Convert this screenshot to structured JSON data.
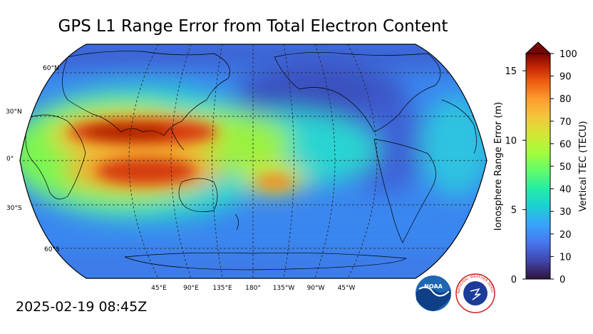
{
  "title": "GPS L1 Range Error from Total Electron Content",
  "timestamp": "2025-02-19 08:45Z",
  "map": {
    "projection": "Robinson",
    "central_longitude": 180,
    "lat_labels": [
      "60°N",
      "30°N",
      "0°",
      "30°S",
      "60°S"
    ],
    "lon_labels": [
      "45°E",
      "90°E",
      "135°E",
      "180°",
      "135°W",
      "90°W",
      "45°W"
    ]
  },
  "colorbar": {
    "left_axis_title": "Ionosphere Range Error (m)",
    "left_ticks": [
      "0",
      "5",
      "10",
      "15"
    ],
    "right_axis_title": "Vertical TEC (TECU)",
    "right_ticks": [
      "0",
      "10",
      "20",
      "30",
      "40",
      "50",
      "60",
      "70",
      "80",
      "90",
      "100"
    ],
    "tec_range": [
      0,
      100
    ],
    "range_error_range": [
      0,
      16.24
    ],
    "extend": "max"
  },
  "logos": {
    "noaa": "NOAA",
    "nws": "NATIONAL WEATHER SERVICE"
  },
  "colors": {
    "low": "#30123b",
    "mid_blue": "#3e9bfe",
    "cyan": "#28e2c8",
    "green": "#7afe52",
    "yellow": "#e1dc37",
    "orange": "#fb8022",
    "red": "#c42503",
    "high": "#7a0403"
  }
}
